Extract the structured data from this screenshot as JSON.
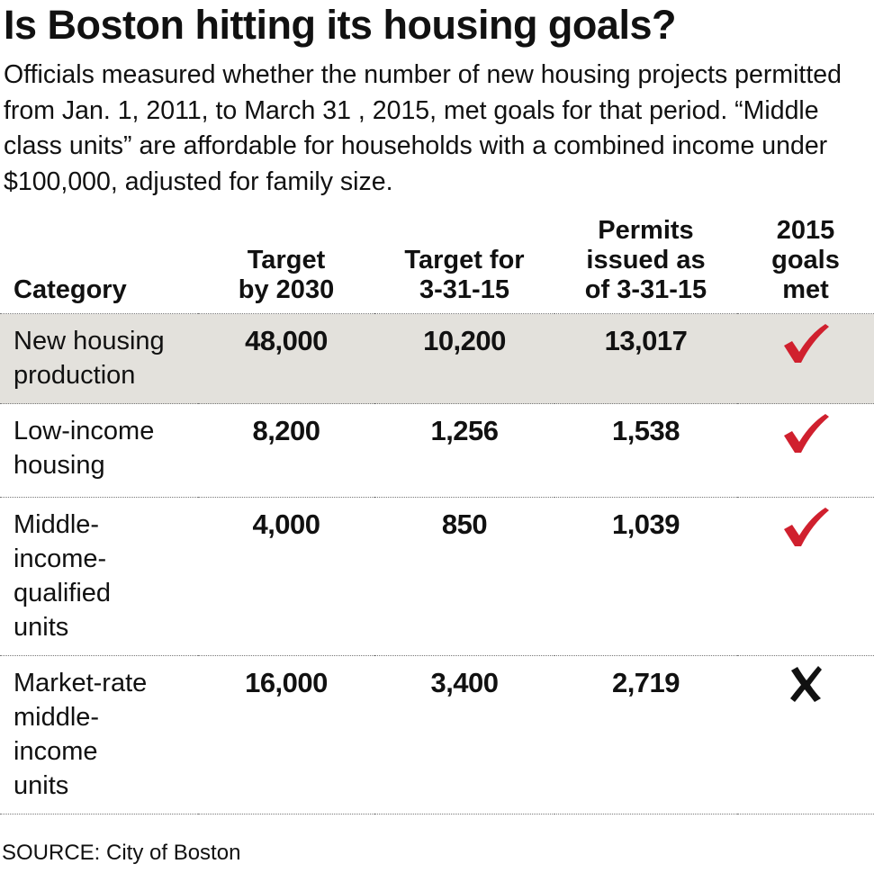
{
  "colors": {
    "check": "#d0202e",
    "cross": "#111111",
    "shaded_row": "#e3e1dc"
  },
  "chart_data": {
    "type": "table",
    "title": "Is Boston hitting its housing goals?",
    "subtitle": "Officials measured whether the number of new housing projects permitted from Jan. 1, 2011, to March 31 , 2015, met goals for that period. “Middle class units” are affordable for households with a combined income under $100,000, adjusted for family size.",
    "columns": [
      "Category",
      "Target by 2030",
      "Target for 3-31-15",
      "Permits issued as of 3-31-15",
      "2015 goals met"
    ],
    "rows": [
      {
        "category": "New housing production",
        "target_2030": "48,000",
        "target_2015": "10,200",
        "permits": "13,017",
        "met": true,
        "met_icon": "check-icon",
        "shaded": true
      },
      {
        "category": "Low-income housing",
        "target_2030": "8,200",
        "target_2015": "1,256",
        "permits": "1,538",
        "met": true,
        "met_icon": "check-icon",
        "shaded": false
      },
      {
        "category": "Middle-income-qualified units",
        "target_2030": "4,000",
        "target_2015": "850",
        "permits": "1,039",
        "met": true,
        "met_icon": "check-icon",
        "shaded": false
      },
      {
        "category": "Market-rate middle-income units",
        "target_2030": "16,000",
        "target_2015": "3,400",
        "permits": "2,719",
        "met": false,
        "met_icon": "cross-icon",
        "shaded": false
      }
    ],
    "source": "SOURCE: City of Boston"
  }
}
